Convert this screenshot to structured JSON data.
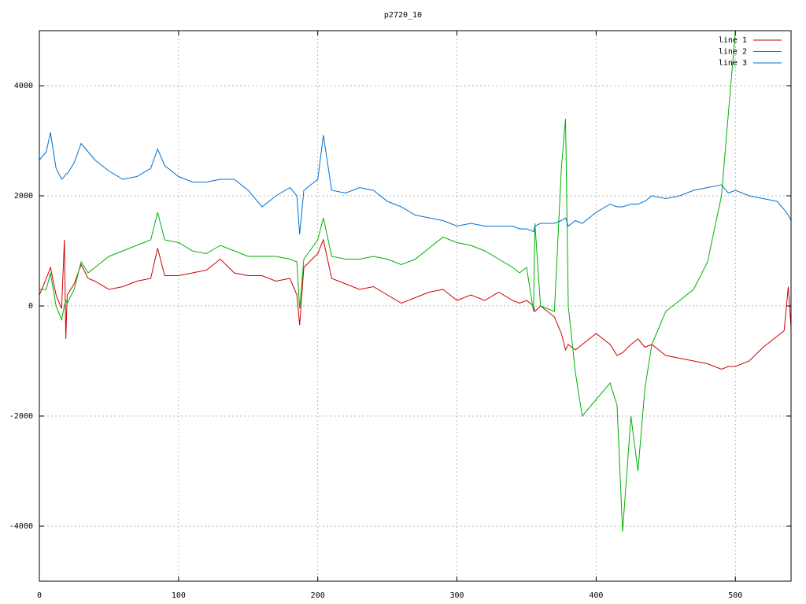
{
  "chart_data": {
    "type": "line",
    "title": "p2720_10",
    "x": [
      0,
      5,
      8,
      12,
      16,
      18,
      19,
      20,
      25,
      30,
      35,
      40,
      50,
      60,
      70,
      80,
      85,
      90,
      100,
      110,
      120,
      130,
      140,
      150,
      160,
      170,
      180,
      185,
      187,
      190,
      200,
      204,
      210,
      220,
      230,
      240,
      250,
      260,
      270,
      280,
      290,
      300,
      310,
      320,
      330,
      340,
      345,
      350,
      355,
      356,
      360,
      370,
      375,
      378,
      380,
      385,
      390,
      400,
      410,
      415,
      419,
      425,
      430,
      435,
      440,
      450,
      460,
      470,
      480,
      490,
      495,
      500,
      510,
      520,
      530,
      535,
      538,
      540
    ],
    "series": [
      {
        "name": "line 1",
        "color": "#cc0000",
        "values": [
          200,
          500,
          700,
          200,
          -50,
          1200,
          -600,
          200,
          400,
          750,
          500,
          450,
          300,
          350,
          450,
          500,
          1050,
          550,
          550,
          600,
          650,
          850,
          600,
          550,
          550,
          450,
          500,
          200,
          -350,
          700,
          950,
          1200,
          500,
          400,
          300,
          350,
          200,
          50,
          150,
          250,
          300,
          100,
          200,
          100,
          250,
          100,
          50,
          100,
          0,
          -100,
          0,
          -200,
          -500,
          -800,
          -700,
          -800,
          -700,
          -500,
          -700,
          -900,
          -850,
          -700,
          -600,
          -750,
          -700,
          -900,
          -950,
          -1000,
          -1050,
          -1150,
          -1100,
          -1100,
          -1000,
          -750,
          -550,
          -450,
          350,
          -400
        ]
      },
      {
        "name": "line 2",
        "color": "#00b000",
        "values": [
          300,
          300,
          600,
          0,
          -250,
          0,
          100,
          50,
          300,
          800,
          600,
          700,
          900,
          1000,
          1100,
          1200,
          1700,
          1200,
          1150,
          1000,
          950,
          1100,
          1000,
          900,
          900,
          900,
          850,
          800,
          -50,
          850,
          1200,
          1600,
          900,
          850,
          850,
          900,
          850,
          750,
          850,
          1050,
          1250,
          1150,
          1100,
          1000,
          850,
          700,
          600,
          700,
          -100,
          1500,
          0,
          -100,
          2500,
          3400,
          0,
          -1200,
          -2000,
          -1700,
          -1400,
          -1800,
          -4100,
          -2000,
          -3000,
          -1500,
          -700,
          -100,
          100,
          300,
          800,
          2000,
          3500,
          5000,
          null,
          null,
          null,
          null,
          null,
          null
        ]
      },
      {
        "name": "line 3",
        "color": "#0070d0",
        "values": [
          2650,
          2800,
          3150,
          2500,
          2300,
          2350,
          2400,
          2400,
          2600,
          2950,
          2800,
          2650,
          2450,
          2300,
          2350,
          2500,
          2850,
          2550,
          2350,
          2250,
          2250,
          2300,
          2300,
          2100,
          1800,
          2000,
          2150,
          2000,
          1300,
          2100,
          2300,
          3100,
          2100,
          2050,
          2150,
          2100,
          1900,
          1800,
          1650,
          1600,
          1550,
          1450,
          1500,
          1450,
          1450,
          1450,
          1400,
          1400,
          1350,
          1450,
          1500,
          1500,
          1550,
          1600,
          1450,
          1550,
          1500,
          1700,
          1850,
          1800,
          1800,
          1850,
          1850,
          1900,
          2000,
          1950,
          2000,
          2100,
          2150,
          2200,
          2050,
          2100,
          2000,
          1950,
          1900,
          1750,
          1650,
          1550
        ]
      }
    ],
    "xlim": [
      0,
      540
    ],
    "ylim": [
      -5000,
      5000
    ],
    "xticks": [
      0,
      100,
      200,
      300,
      400,
      500
    ],
    "yticks": [
      -4000,
      -2000,
      0,
      2000,
      4000
    ],
    "grid": true,
    "legend": "top-right"
  }
}
